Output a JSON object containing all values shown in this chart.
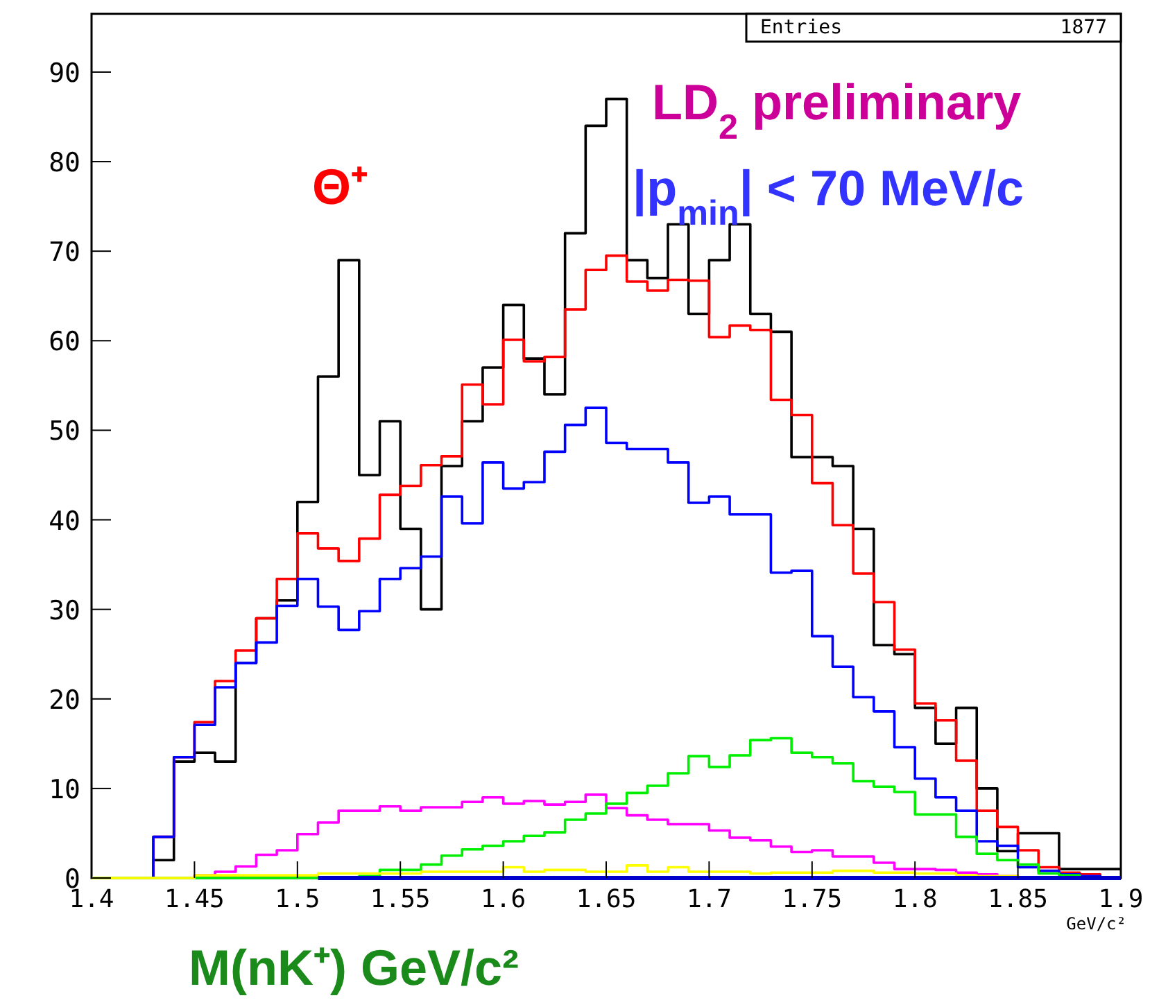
{
  "chart_data": {
    "type": "histogram",
    "bins": [
      1.4,
      1.41,
      1.42,
      1.43,
      1.44,
      1.45,
      1.46,
      1.47,
      1.48,
      1.49,
      1.5,
      1.51,
      1.52,
      1.53,
      1.54,
      1.55,
      1.56,
      1.57,
      1.58,
      1.59,
      1.6,
      1.61,
      1.62,
      1.63,
      1.64,
      1.65,
      1.66,
      1.67,
      1.68,
      1.69,
      1.7,
      1.71,
      1.72,
      1.73,
      1.74,
      1.75,
      1.76,
      1.77,
      1.78,
      1.79,
      1.8,
      1.81,
      1.82,
      1.83,
      1.84,
      1.85,
      1.86,
      1.87,
      1.88,
      1.89,
      1.9
    ],
    "series": [
      {
        "color": "#000000",
        "values": [
          0,
          0,
          0,
          2,
          13,
          14,
          13,
          24,
          29,
          31,
          42,
          56,
          69,
          45,
          51,
          39,
          30,
          46,
          51,
          57,
          64,
          58,
          54,
          72,
          84,
          87,
          69,
          67,
          73,
          63,
          69,
          73,
          63,
          61,
          47,
          47,
          46,
          39,
          26,
          25,
          19,
          15,
          19,
          10,
          3,
          5,
          5,
          1,
          1,
          1
        ]
      },
      {
        "color": "#ff0000",
        "values": [
          0,
          0,
          0,
          4.6,
          13.5,
          17.4,
          22,
          25.4,
          29,
          33.4,
          38.5,
          36.8,
          35.4,
          37.9,
          42.8,
          43.8,
          46.1,
          47.1,
          55.1,
          52.9,
          60.1,
          57.7,
          58.2,
          63.5,
          67.9,
          69.5,
          66.6,
          65.6,
          66.8,
          66.7,
          60.4,
          61.7,
          61.2,
          53.4,
          51.7,
          44.1,
          39.4,
          34,
          30.8,
          25.5,
          19.5,
          17.6,
          13.1,
          7.5,
          5.7,
          3.1,
          1.2,
          0.6,
          0.4,
          0
        ]
      },
      {
        "color": "#0000ff",
        "values": [
          0,
          0,
          0,
          4.6,
          13.5,
          17.1,
          21.3,
          24,
          26.3,
          30.4,
          33.4,
          30.3,
          27.7,
          29.8,
          33.4,
          34.6,
          35.9,
          42.6,
          39.6,
          46.4,
          43.5,
          44.2,
          47.6,
          50.6,
          52.5,
          48.6,
          47.9,
          47.9,
          46.4,
          41.9,
          42.6,
          40.6,
          40.6,
          34.1,
          34.3,
          27,
          23.6,
          20.2,
          18.6,
          14.6,
          11.1,
          9,
          7.5,
          4.1,
          3.6,
          1.2,
          0.8,
          0.4,
          0.2,
          0
        ]
      },
      {
        "color": "#ff00ff",
        "values": [
          0,
          0,
          0,
          0,
          0,
          0.3,
          0.7,
          1.3,
          2.6,
          3.1,
          4.9,
          6.2,
          7.5,
          7.5,
          8,
          7.5,
          7.9,
          7.9,
          8.5,
          9,
          8.3,
          8.6,
          8.2,
          8.5,
          9.3,
          7.8,
          7,
          6.5,
          6,
          6,
          5.3,
          4.5,
          4.2,
          3.5,
          2.9,
          3.1,
          2.4,
          2.4,
          1.7,
          1,
          1,
          0.9,
          0.6,
          0.4,
          0.2,
          0,
          0,
          0,
          0,
          0
        ]
      },
      {
        "color": "#00ee00",
        "values": [
          0,
          0,
          0,
          0,
          0,
          0,
          0,
          0,
          0,
          0,
          0,
          0,
          0,
          0.2,
          0.9,
          0.9,
          1.5,
          2.5,
          3.2,
          3.6,
          4.1,
          4.7,
          5.1,
          6.5,
          7.2,
          8.3,
          9.5,
          10.3,
          11.7,
          13.6,
          12.4,
          13.7,
          15.4,
          15.6,
          14,
          13.5,
          12.8,
          10.8,
          10.2,
          9.6,
          7.1,
          7.1,
          4.6,
          2.7,
          2,
          1.5,
          0.5,
          0.3,
          0,
          0
        ]
      },
      {
        "color": "#ffff00",
        "values": [
          0,
          0,
          0,
          0,
          0,
          0.3,
          0.3,
          0.3,
          0.3,
          0.3,
          0.3,
          0.5,
          0.5,
          0.5,
          0.5,
          0.5,
          0.7,
          0.7,
          0.7,
          0.7,
          1.2,
          0.7,
          0.9,
          0.9,
          0.7,
          0.7,
          1.4,
          0.7,
          1.2,
          0.7,
          0.7,
          0.7,
          0.5,
          0.6,
          0.6,
          0.6,
          0.8,
          0.8,
          0.6,
          0.6,
          0.5,
          0.5,
          0.3,
          0.2,
          0.2,
          0.1,
          0,
          0,
          0,
          0
        ]
      },
      {
        "type": "line",
        "color": "#0000cc",
        "x": [
          1.51,
          1.9
        ],
        "values": [
          0,
          0
        ]
      }
    ],
    "xlabel": "M(nK⁺) GeV/c²",
    "annotations": [
      "Entries",
      "1877",
      "Θ⁺",
      "LD$_{2}$ preliminary",
      "|p$_{min}$| < 70 MeV/c",
      "GeV/c²"
    ],
    "xlim": [
      1.4,
      1.9
    ],
    "xticks": [
      1.4,
      1.45,
      1.5,
      1.55,
      1.6,
      1.65,
      1.7,
      1.75,
      1.8,
      1.85,
      1.9
    ],
    "ylim": [
      0,
      96.5
    ],
    "yticks": [
      0,
      10,
      20,
      30,
      40,
      50,
      60,
      70,
      80,
      90
    ]
  }
}
